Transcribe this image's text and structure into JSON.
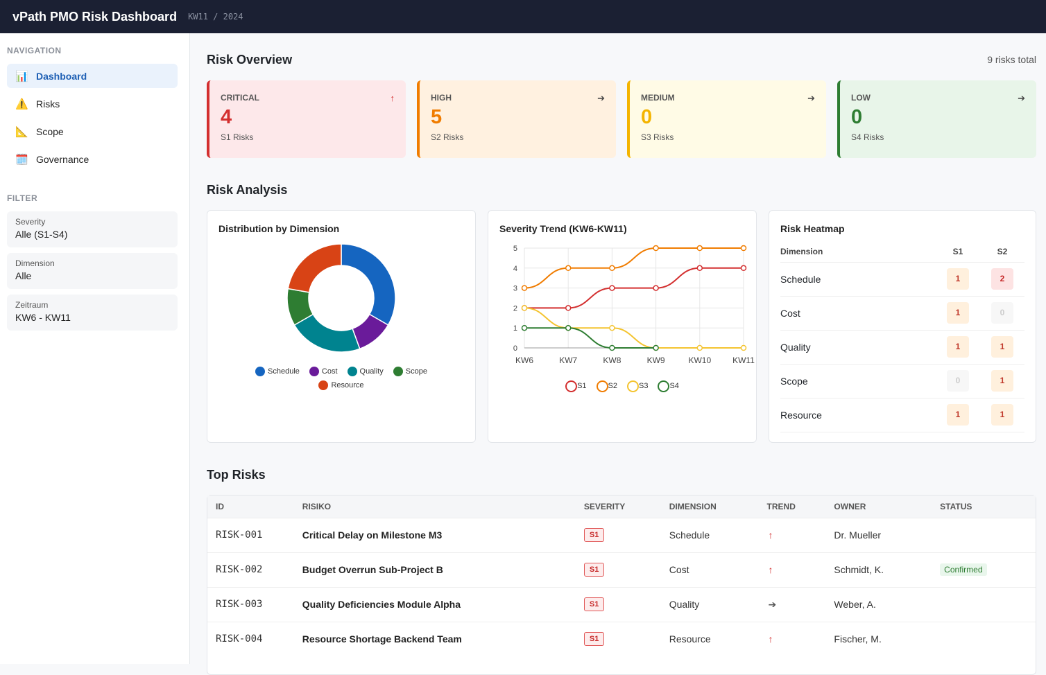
{
  "header": {
    "title": "vPath PMO Risk Dashboard",
    "period": "KW11 / 2024"
  },
  "sidebar": {
    "nav_label": "NAVIGATION",
    "items": [
      {
        "icon": "bar-chart-icon",
        "glyph": "📊",
        "label": "Dashboard"
      },
      {
        "icon": "warning-icon",
        "glyph": "⚠️",
        "label": "Risks"
      },
      {
        "icon": "triangle-ruler-icon",
        "glyph": "📐",
        "label": "Scope"
      },
      {
        "icon": "calendar-icon",
        "glyph": "🗓️",
        "label": "Governance"
      }
    ],
    "filter_label": "FILTER",
    "filters": [
      {
        "label": "Severity",
        "value": "Alle (S1-S4)"
      },
      {
        "label": "Dimension",
        "value": "Alle"
      },
      {
        "label": "Zeitraum",
        "value": "KW6 - KW11"
      }
    ]
  },
  "overview": {
    "title": "Risk Overview",
    "total": "9 risks total",
    "cards": [
      {
        "label": "CRITICAL",
        "value": "4",
        "sub": "S1 Risks",
        "trend": "↑",
        "color": "#d32f2f",
        "bg": "#fde8ea"
      },
      {
        "label": "HIGH",
        "value": "5",
        "sub": "S2 Risks",
        "trend": "➔",
        "color": "#f07c00",
        "bg": "#fff1e0"
      },
      {
        "label": "MEDIUM",
        "value": "0",
        "sub": "S3 Risks",
        "trend": "➔",
        "color": "#f4b400",
        "bg": "#fffbe6"
      },
      {
        "label": "LOW",
        "value": "0",
        "sub": "S4 Risks",
        "trend": "➔",
        "color": "#2e7d32",
        "bg": "#e8f5e9"
      }
    ]
  },
  "analysis": {
    "title": "Risk Analysis"
  },
  "chart_data": [
    {
      "type": "pie",
      "title": "Distribution by Dimension",
      "donut": true,
      "categories": [
        "Schedule",
        "Cost",
        "Quality",
        "Scope",
        "Resource"
      ],
      "values": [
        3,
        1,
        2,
        1,
        2
      ],
      "colors": [
        "#1565c0",
        "#6a1b9a",
        "#00838f",
        "#2e7d32",
        "#d84315"
      ]
    },
    {
      "type": "line",
      "title": "Severity Trend (KW6-KW11)",
      "categories": [
        "KW6",
        "KW7",
        "KW8",
        "KW9",
        "KW10",
        "KW11"
      ],
      "ylim": [
        0,
        5
      ],
      "yticks": [
        "0",
        "1",
        "2",
        "3",
        "4",
        "5"
      ],
      "series": [
        {
          "name": "S1",
          "values": [
            2,
            2,
            3,
            3,
            4,
            4
          ],
          "color": "#d32f2f"
        },
        {
          "name": "S2",
          "values": [
            3,
            4,
            4,
            5,
            5,
            5
          ],
          "color": "#f07c00"
        },
        {
          "name": "S3",
          "values": [
            2,
            1,
            1,
            0,
            0,
            0
          ],
          "color": "#f4c430"
        },
        {
          "name": "S4",
          "values": [
            1,
            1,
            0,
            0,
            null,
            null
          ],
          "color": "#2e7d32"
        }
      ],
      "grid": true,
      "legend": "bottom"
    }
  ],
  "heatmap": {
    "title": "Risk Heatmap",
    "headers": [
      "Dimension",
      "S1",
      "S2"
    ],
    "rows": [
      {
        "dim": "Schedule",
        "s1": "1",
        "s2": "2"
      },
      {
        "dim": "Cost",
        "s1": "1",
        "s2": "0"
      },
      {
        "dim": "Quality",
        "s1": "1",
        "s2": "1"
      },
      {
        "dim": "Scope",
        "s1": "0",
        "s2": "1"
      },
      {
        "dim": "Resource",
        "s1": "1",
        "s2": "1"
      }
    ]
  },
  "top_risks": {
    "title": "Top Risks",
    "headers": [
      "ID",
      "RISIKO",
      "SEVERITY",
      "DIMENSION",
      "TREND",
      "OWNER",
      "STATUS"
    ],
    "rows": [
      {
        "id": "RISK-001",
        "name": "Critical Delay on Milestone M3",
        "sev": "S1",
        "dim": "Schedule",
        "trend": "↑",
        "owner": "Dr. Mueller",
        "status": ""
      },
      {
        "id": "RISK-002",
        "name": "Budget Overrun Sub-Project B",
        "sev": "S1",
        "dim": "Cost",
        "trend": "↑",
        "owner": "Schmidt, K.",
        "status": "Confirmed"
      },
      {
        "id": "RISK-003",
        "name": "Quality Deficiencies Module Alpha",
        "sev": "S1",
        "dim": "Quality",
        "trend": "➔",
        "owner": "Weber, A.",
        "status": ""
      },
      {
        "id": "RISK-004",
        "name": "Resource Shortage Backend Team",
        "sev": "S1",
        "dim": "Resource",
        "trend": "↑",
        "owner": "Fischer, M.",
        "status": ""
      }
    ]
  }
}
